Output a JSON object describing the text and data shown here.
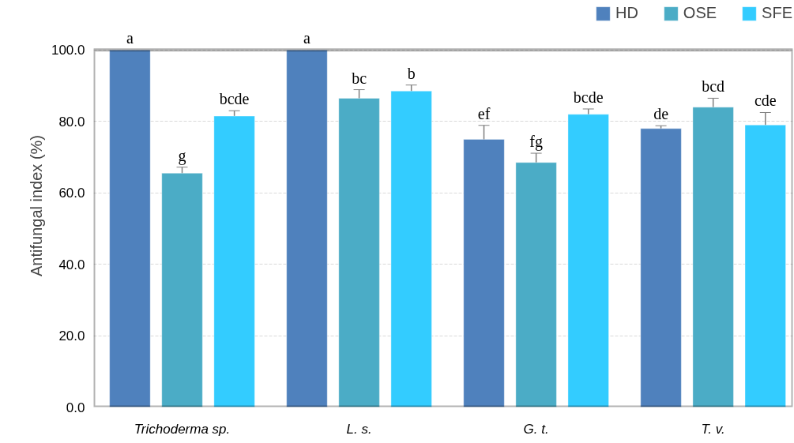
{
  "chart_data": {
    "type": "bar",
    "ylabel": "Antifungal index (%)",
    "categories": [
      "Trichoderma sp.",
      "L. s.",
      "G. t.",
      "T. v."
    ],
    "series": [
      {
        "name": "HD",
        "color": "#4f81bd",
        "values": [
          100,
          100,
          75,
          78
        ],
        "errors": [
          null,
          null,
          3.9,
          0.8
        ],
        "value_labels": [
          "a",
          "a",
          "ef",
          "de"
        ]
      },
      {
        "name": "OSE",
        "color": "#4bacc6",
        "values": [
          65.5,
          86.5,
          68.5,
          84
        ],
        "errors": [
          1.7,
          2.4,
          2.6,
          2.5
        ],
        "value_labels": [
          "g",
          "bc",
          "fg",
          "bcd"
        ]
      },
      {
        "name": "SFE",
        "color": "#33ccff",
        "values": [
          81.5,
          88.5,
          82,
          79
        ],
        "errors": [
          1.5,
          1.7,
          1.5,
          3.5
        ],
        "value_labels": [
          "bcde",
          "b",
          "bcde",
          "cde"
        ]
      }
    ],
    "ylim": [
      0,
      100
    ],
    "yticks": [
      {
        "value": 0,
        "label": "0.0"
      },
      {
        "value": 20,
        "label": "20.0"
      },
      {
        "value": 40,
        "label": "40.0"
      },
      {
        "value": 60,
        "label": "60.0"
      },
      {
        "value": 80,
        "label": "80.0"
      },
      {
        "value": 100,
        "label": "100.0"
      }
    ],
    "grid": "y",
    "legend": "top right"
  }
}
